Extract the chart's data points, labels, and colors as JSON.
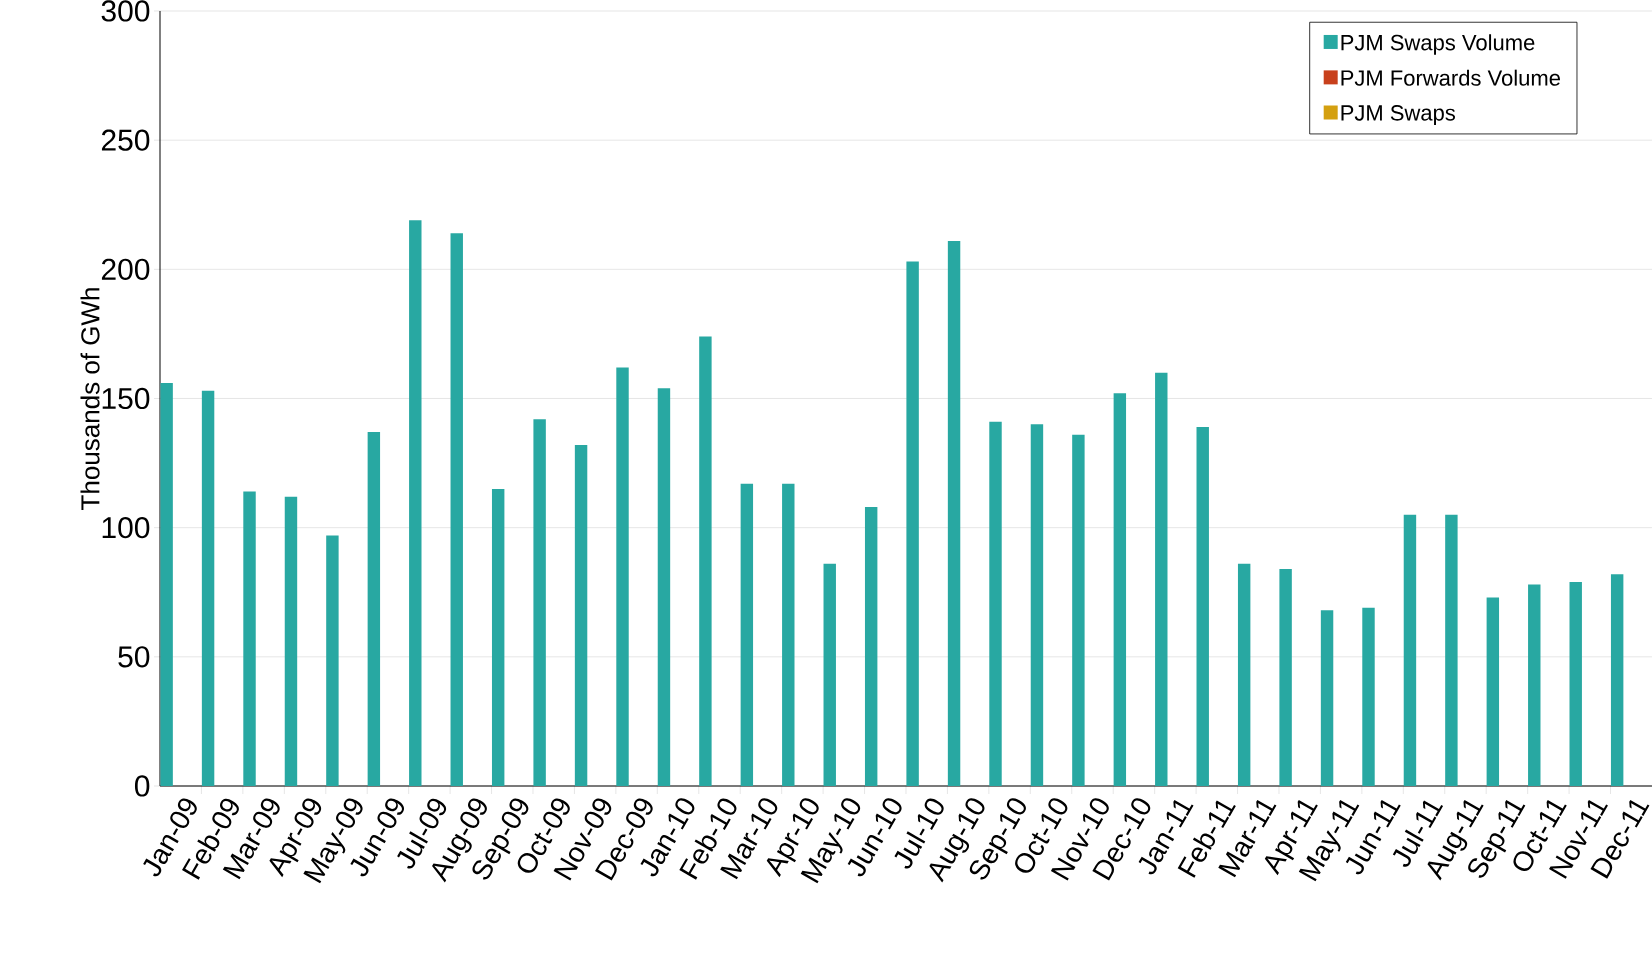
{
  "chart_data": {
    "type": "bar",
    "ylabel": "Thousands of GWh",
    "categories": [
      "Jan-09",
      "Feb-09",
      "Mar-09",
      "Apr-09",
      "May-09",
      "Jun-09",
      "Jul-09",
      "Aug-09",
      "Sep-09",
      "Oct-09",
      "Nov-09",
      "Dec-09",
      "Jan-10",
      "Feb-10",
      "Mar-10",
      "Apr-10",
      "May-10",
      "Jun-10",
      "Jul-10",
      "Aug-10",
      "Sep-10",
      "Oct-10",
      "Nov-10",
      "Dec-10",
      "Jan-11",
      "Feb-11",
      "Mar-11",
      "Apr-11",
      "May-11",
      "Jun-11",
      "Jul-11",
      "Aug-11",
      "Sep-11",
      "Oct-11",
      "Nov-11",
      "Dec-11"
    ],
    "series": [
      {
        "name": "PJM Swaps Volume",
        "color": "#28a8a2",
        "values": [
          156,
          153,
          114,
          112,
          97,
          137,
          219,
          214,
          115,
          142,
          132,
          162,
          154,
          174,
          117,
          117,
          86,
          108,
          203,
          211,
          141,
          140,
          136,
          152,
          160,
          139,
          86,
          84,
          68,
          69,
          105,
          105,
          73,
          78,
          79,
          82
        ]
      },
      {
        "name": "PJM Forwards Volume",
        "color": "#c8401c",
        "values": [
          null,
          null,
          null,
          null,
          null,
          null,
          null,
          null,
          null,
          null,
          null,
          null,
          null,
          null,
          null,
          null,
          null,
          null,
          null,
          null,
          null,
          null,
          null,
          null,
          null,
          null,
          null,
          null,
          null,
          null,
          null,
          null,
          null,
          null,
          null,
          null
        ]
      },
      {
        "name": "PJM Swaps",
        "color": "#d4a010",
        "values": [
          null,
          null,
          null,
          null,
          null,
          null,
          null,
          null,
          null,
          null,
          null,
          null,
          null,
          null,
          null,
          null,
          null,
          null,
          null,
          null,
          null,
          null,
          null,
          null,
          null,
          null,
          null,
          null,
          null,
          null,
          null,
          null,
          null,
          null,
          null,
          null
        ]
      }
    ],
    "ylim": [
      0,
      300
    ],
    "yticks": [
      0,
      50,
      100,
      150,
      200,
      250,
      300
    ],
    "grid": "y",
    "legend": "top right"
  }
}
